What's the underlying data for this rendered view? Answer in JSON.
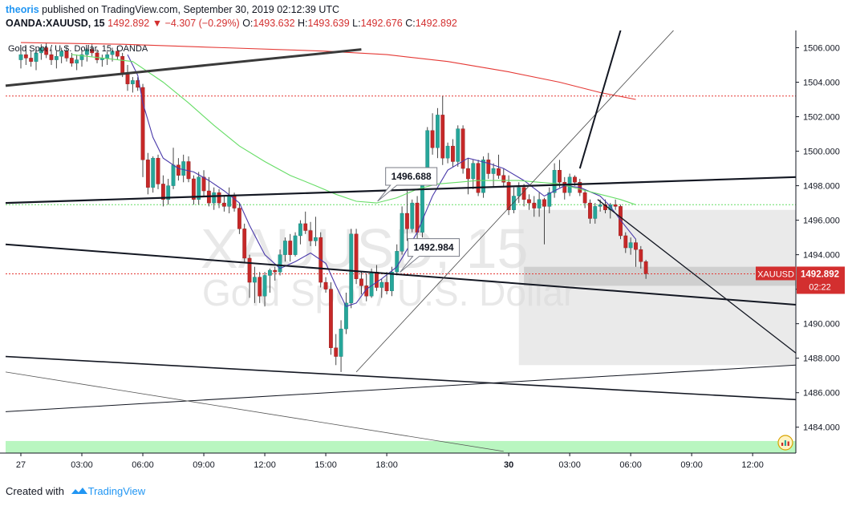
{
  "header": {
    "author": "theoris",
    "published_text": "published on TradingView.com, September 30, 2019 02:12:39 UTC",
    "symbol": "OANDA:XAUUSD, 15",
    "last_price": "1492.892",
    "change": "▼ −4.307 (−0.29%)",
    "open_label": "O:",
    "open": "1493.632",
    "high_label": "H:",
    "high": "1493.639",
    "low_label": "L:",
    "low": "1492.676",
    "close_label": "C:",
    "close": "1492.892"
  },
  "legend_text": "Gold Spot / U.S. Dollar, 15, OANDA",
  "watermark": {
    "line1": "XAUUSD, 15",
    "line2": "Gold Spot / U.S. Dollar"
  },
  "price_badge": {
    "symbol": "XAUUSD",
    "price": "1492.892",
    "countdown": "02:22"
  },
  "callouts": [
    {
      "text": "1496.688",
      "t": 70.2,
      "p": 1497.1
    },
    {
      "text": "1492.984",
      "t": 74.6,
      "p": 1492.98
    }
  ],
  "footer": {
    "created_with": "Created with",
    "brand": "TradingView"
  },
  "colors": {
    "up": "#26a69a",
    "down": "#c62828",
    "sma_short": "#4a3aaa",
    "sma_mid": "#66dd66",
    "sma_long": "#e53935",
    "brand": "#2196f3"
  },
  "chart_data": {
    "type": "candlestick",
    "interval": "15",
    "y_ticks": [
      1484.0,
      1486.0,
      1488.0,
      1490.0,
      1492.0,
      1494.0,
      1496.0,
      1498.0,
      1500.0,
      1502.0,
      1504.0,
      1506.0
    ],
    "ylim": [
      1482.5,
      1507.0
    ],
    "x_ticks": [
      {
        "label": "27",
        "t": 0,
        "bold": false
      },
      {
        "label": "03:00",
        "t": 12,
        "bold": false
      },
      {
        "label": "06:00",
        "t": 24,
        "bold": false
      },
      {
        "label": "09:00",
        "t": 36,
        "bold": false
      },
      {
        "label": "12:00",
        "t": 48,
        "bold": false
      },
      {
        "label": "15:00",
        "t": 60,
        "bold": false
      },
      {
        "label": "18:00",
        "t": 72,
        "bold": false
      },
      {
        "label": "30",
        "t": 96,
        "bold": true
      },
      {
        "label": "03:00",
        "t": 108,
        "bold": false
      },
      {
        "label": "06:00",
        "t": 120,
        "bold": false
      },
      {
        "label": "09:00",
        "t": 132,
        "bold": false
      },
      {
        "label": "12:00",
        "t": 144,
        "bold": false
      }
    ],
    "xlim": [
      -3,
      152.5
    ],
    "candles": [
      [
        1505.3,
        1506.0,
        1504.8,
        1505.6
      ],
      [
        1505.6,
        1506.1,
        1505.0,
        1505.4
      ],
      [
        1505.4,
        1505.8,
        1504.9,
        1505.2
      ],
      [
        1505.2,
        1505.9,
        1504.7,
        1505.7
      ],
      [
        1505.7,
        1506.2,
        1505.3,
        1506.0
      ],
      [
        1506.0,
        1506.3,
        1505.4,
        1505.6
      ],
      [
        1505.6,
        1505.9,
        1505.0,
        1505.3
      ],
      [
        1505.3,
        1505.8,
        1504.8,
        1505.5
      ],
      [
        1505.5,
        1506.0,
        1505.1,
        1505.8
      ],
      [
        1505.8,
        1506.1,
        1505.2,
        1505.4
      ],
      [
        1505.4,
        1505.7,
        1504.9,
        1505.1
      ],
      [
        1505.1,
        1505.6,
        1504.7,
        1505.3
      ],
      [
        1505.3,
        1505.9,
        1504.9,
        1505.6
      ],
      [
        1505.6,
        1506.0,
        1505.2,
        1505.9
      ],
      [
        1505.9,
        1506.2,
        1505.5,
        1505.7
      ],
      [
        1505.7,
        1505.9,
        1505.1,
        1505.3
      ],
      [
        1505.3,
        1505.6,
        1504.9,
        1505.4
      ],
      [
        1505.4,
        1505.8,
        1505.0,
        1505.6
      ],
      [
        1505.6,
        1506.0,
        1505.2,
        1505.8
      ],
      [
        1505.8,
        1506.1,
        1505.3,
        1505.5
      ],
      [
        1505.5,
        1505.7,
        1504.3,
        1504.5
      ],
      [
        1504.5,
        1505.0,
        1503.5,
        1503.9
      ],
      [
        1503.9,
        1504.3,
        1503.4,
        1504.1
      ],
      [
        1504.1,
        1504.3,
        1503.5,
        1503.7
      ],
      [
        1503.7,
        1503.9,
        1498.5,
        1499.5
      ],
      [
        1499.5,
        1499.9,
        1497.5,
        1497.9
      ],
      [
        1497.9,
        1499.7,
        1497.6,
        1499.6
      ],
      [
        1499.6,
        1499.8,
        1497.8,
        1498.1
      ],
      [
        1498.1,
        1498.6,
        1496.8,
        1497.2
      ],
      [
        1497.2,
        1498.4,
        1496.9,
        1498.0
      ],
      [
        1498.0,
        1500.2,
        1497.8,
        1499.2
      ],
      [
        1499.2,
        1499.6,
        1498.3,
        1498.6
      ],
      [
        1498.6,
        1499.8,
        1498.2,
        1499.4
      ],
      [
        1499.4,
        1499.7,
        1498.2,
        1498.4
      ],
      [
        1498.4,
        1498.6,
        1496.9,
        1497.2
      ],
      [
        1497.2,
        1498.8,
        1496.9,
        1498.5
      ],
      [
        1498.5,
        1498.9,
        1497.4,
        1497.7
      ],
      [
        1497.7,
        1498.5,
        1496.8,
        1497.0
      ],
      [
        1497.0,
        1497.9,
        1496.6,
        1497.6
      ],
      [
        1497.6,
        1497.8,
        1496.7,
        1497.0
      ],
      [
        1497.0,
        1497.4,
        1496.5,
        1496.8
      ],
      [
        1496.8,
        1497.9,
        1496.4,
        1497.4
      ],
      [
        1497.4,
        1497.6,
        1496.5,
        1496.7
      ],
      [
        1496.7,
        1497.0,
        1495.2,
        1495.5
      ],
      [
        1495.5,
        1495.8,
        1493.5,
        1493.8
      ],
      [
        1493.8,
        1494.0,
        1491.5,
        1492.4
      ],
      [
        1492.4,
        1493.3,
        1491.2,
        1492.7
      ],
      [
        1492.7,
        1493.0,
        1491.2,
        1491.6
      ],
      [
        1491.6,
        1493.0,
        1491.0,
        1492.8
      ],
      [
        1492.8,
        1493.2,
        1491.8,
        1493.1
      ],
      [
        1493.1,
        1493.3,
        1492.5,
        1493.0
      ],
      [
        1493.0,
        1494.3,
        1492.8,
        1494.0
      ],
      [
        1494.0,
        1495.0,
        1493.6,
        1494.8
      ],
      [
        1494.8,
        1495.2,
        1493.6,
        1494.0
      ],
      [
        1494.0,
        1495.3,
        1493.9,
        1495.1
      ],
      [
        1495.1,
        1496.0,
        1494.6,
        1495.8
      ],
      [
        1495.8,
        1496.5,
        1495.2,
        1495.4
      ],
      [
        1495.4,
        1495.9,
        1494.5,
        1494.8
      ],
      [
        1494.8,
        1496.2,
        1494.5,
        1495.0
      ],
      [
        1495.0,
        1495.3,
        1492.1,
        1492.4
      ],
      [
        1492.4,
        1492.7,
        1491.8,
        1492.0
      ],
      [
        1492.0,
        1492.4,
        1488.2,
        1488.6
      ],
      [
        1488.6,
        1489.4,
        1487.6,
        1488.1
      ],
      [
        1488.1,
        1490.2,
        1487.2,
        1489.7
      ],
      [
        1489.7,
        1491.8,
        1489.4,
        1491.2
      ],
      [
        1491.2,
        1495.5,
        1490.9,
        1495.2
      ],
      [
        1495.2,
        1495.5,
        1492.3,
        1492.6
      ],
      [
        1492.6,
        1493.0,
        1491.7,
        1492.2
      ],
      [
        1492.2,
        1492.9,
        1491.3,
        1491.6
      ],
      [
        1491.6,
        1493.2,
        1491.5,
        1493.0
      ],
      [
        1493.0,
        1493.4,
        1491.9,
        1492.1
      ],
      [
        1492.1,
        1492.6,
        1491.5,
        1492.4
      ],
      [
        1492.4,
        1493.0,
        1491.7,
        1491.9
      ],
      [
        1491.9,
        1493.3,
        1491.6,
        1493.0
      ],
      [
        1493.0,
        1494.6,
        1492.8,
        1494.2
      ],
      [
        1494.2,
        1496.8,
        1494.0,
        1496.4
      ],
      [
        1496.4,
        1497.7,
        1494.8,
        1495.5
      ],
      [
        1495.5,
        1497.2,
        1495.3,
        1497.0
      ],
      [
        1497.0,
        1497.4,
        1494.9,
        1495.3
      ],
      [
        1495.3,
        1498.4,
        1495.0,
        1498.3
      ],
      [
        1498.3,
        1501.4,
        1498.1,
        1501.2
      ],
      [
        1501.2,
        1502.2,
        1499.8,
        1500.2
      ],
      [
        1500.2,
        1502.5,
        1499.6,
        1502.1
      ],
      [
        1502.1,
        1503.2,
        1499.2,
        1499.6
      ],
      [
        1499.6,
        1500.5,
        1499.3,
        1500.3
      ],
      [
        1500.3,
        1500.7,
        1499.1,
        1499.4
      ],
      [
        1499.4,
        1501.5,
        1499.1,
        1501.3
      ],
      [
        1501.3,
        1501.5,
        1498.7,
        1499.0
      ],
      [
        1499.0,
        1499.6,
        1497.5,
        1498.4
      ],
      [
        1498.4,
        1499.5,
        1497.8,
        1499.3
      ],
      [
        1499.3,
        1499.5,
        1497.4,
        1497.6
      ],
      [
        1497.6,
        1499.7,
        1497.3,
        1499.5
      ],
      [
        1499.5,
        1499.9,
        1498.4,
        1498.7
      ],
      [
        1498.7,
        1499.3,
        1497.9,
        1499.0
      ],
      [
        1499.0,
        1499.8,
        1498.4,
        1498.6
      ],
      [
        1498.6,
        1499.0,
        1497.9,
        1498.2
      ],
      [
        1498.2,
        1498.6,
        1496.3,
        1496.6
      ],
      [
        1496.6,
        1497.9,
        1496.4,
        1497.4
      ],
      [
        1497.4,
        1498.2,
        1497.0,
        1497.9
      ],
      [
        1497.9,
        1498.1,
        1496.8,
        1497.2
      ],
      [
        1497.2,
        1497.5,
        1496.6,
        1497.0
      ],
      [
        1497.0,
        1497.4,
        1496.2,
        1496.7
      ],
      [
        1496.7,
        1497.6,
        1496.2,
        1497.2
      ],
      [
        1497.2,
        1497.3,
        1494.6,
        1496.8
      ],
      [
        1496.8,
        1497.9,
        1496.4,
        1497.6
      ],
      [
        1497.6,
        1499.3,
        1497.3,
        1498.9
      ],
      [
        1498.9,
        1499.5,
        1497.9,
        1498.2
      ],
      [
        1498.2,
        1498.5,
        1497.2,
        1497.6
      ],
      [
        1497.6,
        1498.7,
        1497.4,
        1498.5
      ],
      [
        1498.5,
        1498.6,
        1498.0,
        1498.2
      ],
      [
        1498.2,
        1498.4,
        1497.4,
        1497.6
      ],
      [
        1497.6,
        1497.8,
        1496.7,
        1497.0
      ],
      [
        1497.0,
        1497.2,
        1495.8,
        1496.1
      ],
      [
        1496.1,
        1497.0,
        1495.8,
        1496.8
      ],
      [
        1496.8,
        1497.2,
        1496.5,
        1496.9
      ],
      [
        1496.9,
        1497.2,
        1496.4,
        1496.6
      ],
      [
        1496.6,
        1497.0,
        1496.1,
        1496.9
      ],
      [
        1496.9,
        1497.2,
        1496.6,
        1496.8
      ],
      [
        1496.8,
        1496.9,
        1494.9,
        1495.1
      ],
      [
        1495.1,
        1495.3,
        1494.1,
        1494.4
      ],
      [
        1494.4,
        1495.0,
        1494.0,
        1494.7
      ],
      [
        1494.7,
        1494.9,
        1493.3,
        1494.3
      ],
      [
        1494.3,
        1494.5,
        1493.2,
        1493.6
      ],
      [
        1493.6,
        1493.7,
        1492.6,
        1492.9
      ]
    ],
    "series": [
      {
        "name": "sma_short",
        "points": [
          [
            21,
            1505.6
          ],
          [
            23,
            1504.4
          ],
          [
            24,
            1502.8
          ],
          [
            26,
            1500.8
          ],
          [
            28,
            1499.6
          ],
          [
            31,
            1499.0
          ],
          [
            34,
            1498.8
          ],
          [
            37,
            1498.3
          ],
          [
            40,
            1497.7
          ],
          [
            43,
            1497.0
          ],
          [
            45,
            1495.7
          ],
          [
            48,
            1494.0
          ],
          [
            51,
            1493.2
          ],
          [
            54,
            1493.6
          ],
          [
            57,
            1494.1
          ],
          [
            60,
            1493.5
          ],
          [
            62,
            1492.2
          ],
          [
            64,
            1491.0
          ],
          [
            66,
            1491.2
          ],
          [
            68,
            1492.0
          ],
          [
            71,
            1492.6
          ],
          [
            74,
            1493.3
          ],
          [
            78,
            1495.3
          ],
          [
            81,
            1497.4
          ],
          [
            84,
            1498.9
          ],
          [
            88,
            1499.6
          ],
          [
            92,
            1499.3
          ],
          [
            95,
            1499.0
          ],
          [
            99,
            1498.3
          ],
          [
            103,
            1497.4
          ],
          [
            107,
            1498.0
          ],
          [
            110,
            1497.9
          ],
          [
            114,
            1497.4
          ],
          [
            116,
            1496.8
          ],
          [
            118,
            1496.0
          ],
          [
            121,
            1494.9
          ]
        ]
      },
      {
        "name": "sma_mid",
        "points": [
          [
            10,
            1505.6
          ],
          [
            22,
            1505.2
          ],
          [
            28,
            1504.0
          ],
          [
            33,
            1502.8
          ],
          [
            38,
            1501.5
          ],
          [
            43,
            1500.3
          ],
          [
            48,
            1499.4
          ],
          [
            53,
            1498.6
          ],
          [
            58,
            1498.0
          ],
          [
            62,
            1497.5
          ],
          [
            66,
            1497.1
          ],
          [
            70,
            1497.0
          ],
          [
            74,
            1497.3
          ],
          [
            78,
            1497.8
          ],
          [
            82,
            1498.1
          ],
          [
            86,
            1498.2
          ],
          [
            90,
            1498.3
          ],
          [
            94,
            1498.3
          ],
          [
            98,
            1498.3
          ],
          [
            102,
            1498.2
          ],
          [
            106,
            1498.1
          ],
          [
            110,
            1497.8
          ],
          [
            114,
            1497.5
          ],
          [
            118,
            1497.2
          ],
          [
            121,
            1496.9
          ]
        ]
      },
      {
        "name": "sma_long",
        "points": [
          [
            0,
            1506.3
          ],
          [
            20,
            1506.2
          ],
          [
            40,
            1506.0
          ],
          [
            60,
            1505.8
          ],
          [
            72,
            1505.6
          ],
          [
            84,
            1505.2
          ],
          [
            96,
            1504.6
          ],
          [
            106,
            1504.0
          ],
          [
            114,
            1503.4
          ],
          [
            121,
            1503.0
          ]
        ]
      }
    ],
    "zones": [
      {
        "t0": 98,
        "t1": 152.5,
        "p0": 1487.6,
        "p1": 1496.6
      },
      {
        "t0": 99,
        "t1": 152.5,
        "p0": 1492.2,
        "p1": 1493.3
      }
    ],
    "hlines": [
      {
        "price": 1503.2,
        "color": "#e53935",
        "dash": "2,2"
      },
      {
        "price": 1496.9,
        "color": "#66dd66",
        "dash": "2,2"
      },
      {
        "price": 1492.89,
        "color": "#e53935",
        "dash": "2,2"
      }
    ],
    "trendlines": [
      {
        "t0": -3,
        "p0": 1503.8,
        "t1": 67,
        "p1": 1505.9,
        "w": 3.0,
        "c": "#3a3a3a"
      },
      {
        "t0": -3,
        "p0": 1497.0,
        "t1": 152.5,
        "p1": 1498.5,
        "w": 2.2,
        "c": "#131722"
      },
      {
        "t0": -3,
        "p0": 1494.6,
        "t1": 152.5,
        "p1": 1491.1,
        "w": 2.0,
        "c": "#131722"
      },
      {
        "t0": -3,
        "p0": 1488.1,
        "t1": 152.5,
        "p1": 1485.6,
        "w": 1.6,
        "c": "#131722"
      },
      {
        "t0": -3,
        "p0": 1484.9,
        "t1": 152.5,
        "p1": 1487.6,
        "w": 1.0,
        "c": "#131722"
      },
      {
        "t0": -3,
        "p0": 1487.2,
        "t1": 95,
        "p1": 1482.6,
        "w": 0.8,
        "c": "#555555"
      },
      {
        "t0": 66,
        "p0": 1487.2,
        "t1": 130,
        "p1": 1507.5,
        "w": 0.8,
        "c": "#444444"
      },
      {
        "t0": 110,
        "p0": 1499.0,
        "t1": 118.5,
        "p1": 1507.5,
        "w": 2.0,
        "c": "#131722"
      },
      {
        "t0": 113.5,
        "p0": 1497.2,
        "t1": 152.5,
        "p1": 1488.3,
        "w": 1.3,
        "c": "#131722"
      }
    ],
    "green_band": [
      1482.5,
      1483.2
    ]
  }
}
